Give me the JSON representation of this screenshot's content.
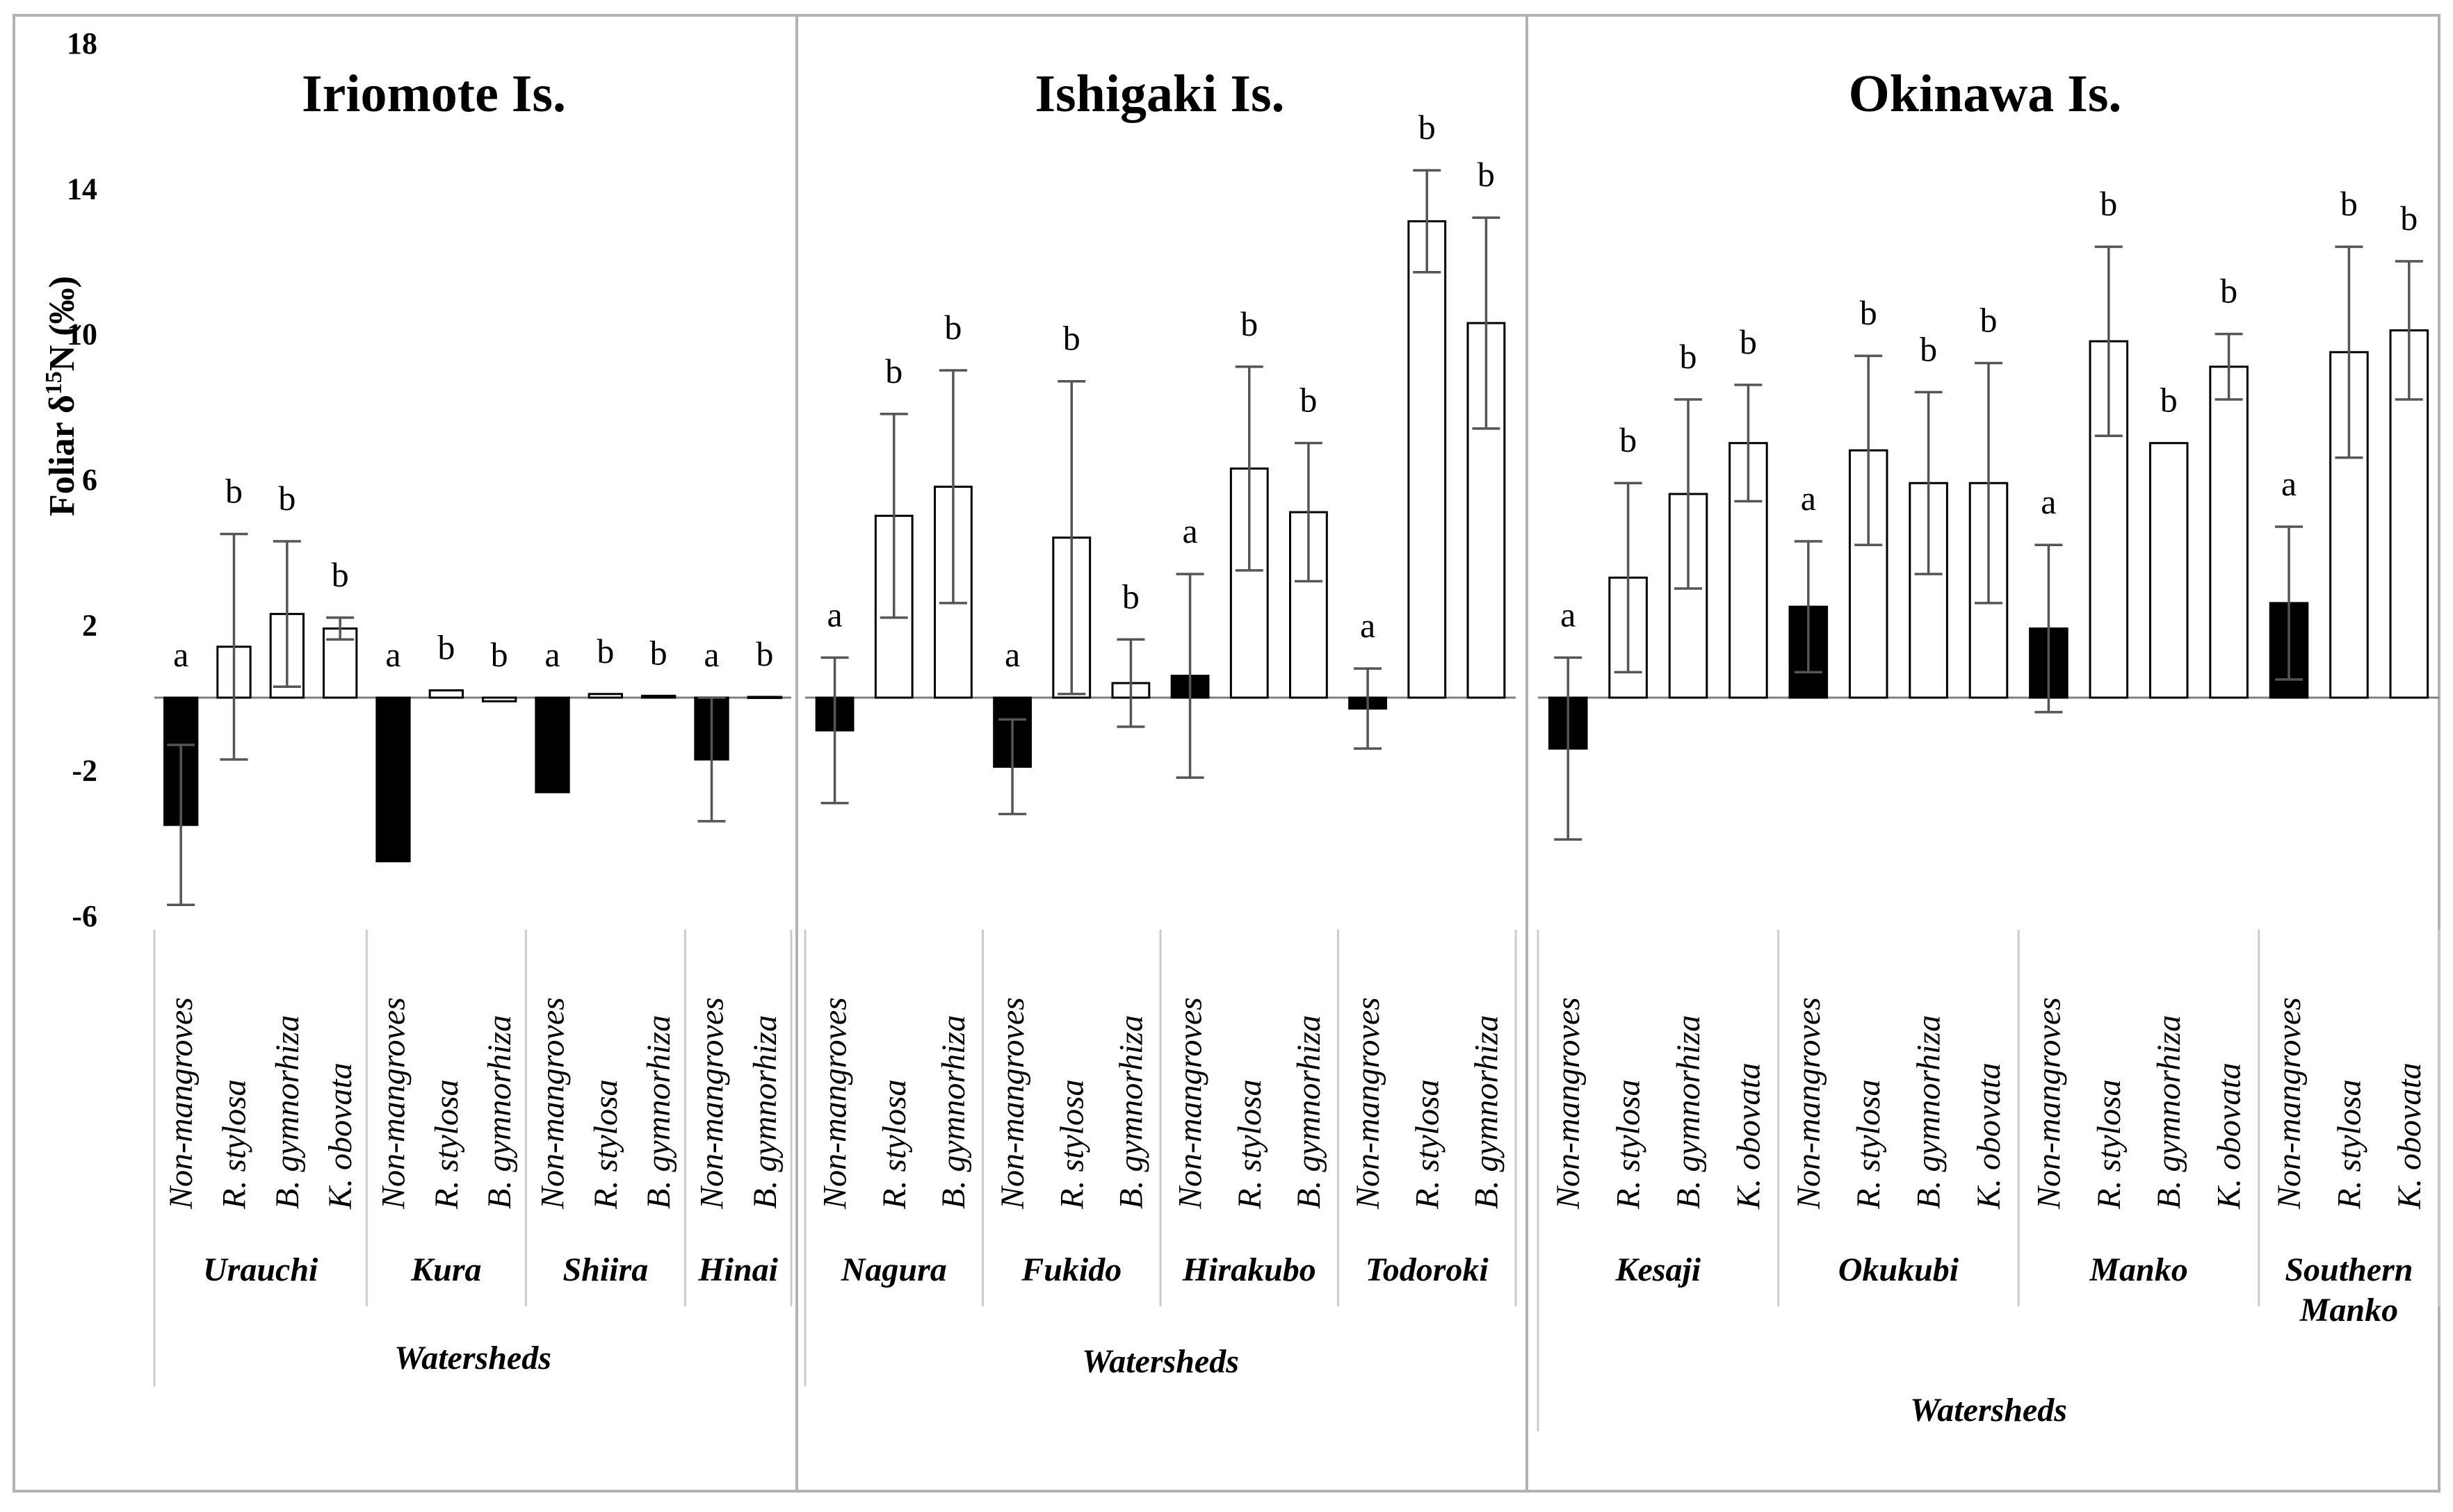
{
  "chart_data": {
    "type": "bar",
    "ylabel": "Foliar δ¹⁵N (‰)",
    "ylabel_parts": {
      "pre": "Foliar δ",
      "sup": "15",
      "post": "N (‰)"
    },
    "ylim": [
      -6,
      18
    ],
    "yticks": [
      -6,
      -2,
      2,
      6,
      10,
      14,
      18
    ],
    "colors": {
      "non_mangrove": "#000000",
      "mangrove": "#ffffff",
      "error": "#555555",
      "divider": "#cccccc",
      "frame": "#b3b3b3"
    },
    "panels": [
      {
        "title": "Iriomote Is.",
        "xlabel": "Watersheds",
        "watersheds": [
          {
            "name": "Urauchi",
            "bars": [
              {
                "species": "Non-mangroves",
                "value": -3.5,
                "err": 2.2,
                "letter": "a",
                "filled": true
              },
              {
                "species": "R. stylosa",
                "value": 1.4,
                "err": 3.1,
                "letter": "b",
                "filled": false
              },
              {
                "species": "B. gymnorhiza",
                "value": 2.3,
                "err": 2.0,
                "letter": "b",
                "filled": false
              },
              {
                "species": "K. obovata",
                "value": 1.9,
                "err": 0.3,
                "letter": "b",
                "filled": false
              }
            ]
          },
          {
            "name": "Kura",
            "bars": [
              {
                "species": "Non-mangroves",
                "value": -4.5,
                "err": 0,
                "letter": "a",
                "filled": true
              },
              {
                "species": "R. stylosa",
                "value": 0.2,
                "err": 0,
                "letter": "b",
                "filled": false
              },
              {
                "species": "B. gymnorhiza",
                "value": -0.1,
                "err": 0,
                "letter": "b",
                "filled": false
              }
            ]
          },
          {
            "name": "Shiira",
            "bars": [
              {
                "species": "Non-mangroves",
                "value": -2.6,
                "err": 0,
                "letter": "a",
                "filled": true
              },
              {
                "species": "R. stylosa",
                "value": 0.1,
                "err": 0,
                "letter": "b",
                "filled": false
              },
              {
                "species": "B. gymnorhiza",
                "value": 0.05,
                "err": 0,
                "letter": "b",
                "filled": false
              }
            ]
          },
          {
            "name": "Hinai",
            "bars": [
              {
                "species": "Non-mangroves",
                "value": -1.7,
                "err": 1.7,
                "letter": "a",
                "filled": true
              },
              {
                "species": "B. gymnorhiza",
                "value": 0.02,
                "err": 0,
                "letter": "b",
                "filled": false
              }
            ]
          }
        ]
      },
      {
        "title": "Ishigaki Is.",
        "xlabel": "Watersheds",
        "watersheds": [
          {
            "name": "Nagura",
            "bars": [
              {
                "species": "Non-mangroves",
                "value": -0.9,
                "err": 2.0,
                "letter": "a",
                "filled": true
              },
              {
                "species": "R. stylosa",
                "value": 5.0,
                "err": 2.8,
                "letter": "b",
                "filled": false
              },
              {
                "species": "B. gymnorhiza",
                "value": 5.8,
                "err": 3.2,
                "letter": "b",
                "filled": false
              }
            ]
          },
          {
            "name": "Fukido",
            "bars": [
              {
                "species": "Non-mangroves",
                "value": -1.9,
                "err": 1.3,
                "letter": "a",
                "filled": true
              },
              {
                "species": "R. stylosa",
                "value": 4.4,
                "err": 4.3,
                "letter": "b",
                "filled": false
              },
              {
                "species": "B. gymnorhiza",
                "value": 0.4,
                "err": 1.2,
                "letter": "b",
                "filled": false
              }
            ]
          },
          {
            "name": "Hirakubo",
            "bars": [
              {
                "species": "Non-mangroves",
                "value": 0.6,
                "err": 2.8,
                "letter": "a",
                "filled": true
              },
              {
                "species": "R. stylosa",
                "value": 6.3,
                "err": 2.8,
                "letter": "b",
                "filled": false
              },
              {
                "species": "B. gymnorhiza",
                "value": 5.1,
                "err": 1.9,
                "letter": "b",
                "filled": false
              }
            ]
          },
          {
            "name": "Todoroki",
            "bars": [
              {
                "species": "Non-mangroves",
                "value": -0.3,
                "err": 1.1,
                "letter": "a",
                "filled": true
              },
              {
                "species": "R. stylosa",
                "value": 13.1,
                "err": 1.4,
                "letter": "b",
                "filled": false
              },
              {
                "species": "B. gymnorhiza",
                "value": 10.3,
                "err": 2.9,
                "letter": "b",
                "filled": false
              }
            ]
          }
        ]
      },
      {
        "title": "Okinawa Is.",
        "xlabel": "Watersheds",
        "watersheds": [
          {
            "name": "Kesaji",
            "bars": [
              {
                "species": "Non-mangroves",
                "value": -1.4,
                "err": 2.5,
                "letter": "a",
                "filled": true
              },
              {
                "species": "R. stylosa",
                "value": 3.3,
                "err": 2.6,
                "letter": "b",
                "filled": false
              },
              {
                "species": "B. gymnorhiza",
                "value": 5.6,
                "err": 2.6,
                "letter": "b",
                "filled": false
              },
              {
                "species": "K. obovata",
                "value": 7.0,
                "err": 1.6,
                "letter": "b",
                "filled": false
              }
            ]
          },
          {
            "name": "Okukubi",
            "bars": [
              {
                "species": "Non-mangroves",
                "value": 2.5,
                "err": 1.8,
                "letter": "a",
                "filled": true
              },
              {
                "species": "R. stylosa",
                "value": 6.8,
                "err": 2.6,
                "letter": "b",
                "filled": false
              },
              {
                "species": "B. gymnorhiza",
                "value": 5.9,
                "err": 2.5,
                "letter": "b",
                "filled": false
              },
              {
                "species": "K. obovata",
                "value": 5.9,
                "err": 3.3,
                "letter": "b",
                "filled": false
              }
            ]
          },
          {
            "name": "Manko",
            "bars": [
              {
                "species": "Non-mangroves",
                "value": 1.9,
                "err": 2.3,
                "letter": "a",
                "filled": true
              },
              {
                "species": "R. stylosa",
                "value": 9.8,
                "err": 2.6,
                "letter": "b",
                "filled": false
              },
              {
                "species": "B. gymnorhiza",
                "value": 7.0,
                "err": 0,
                "letter": "b",
                "filled": false
              },
              {
                "species": "K. obovata",
                "value": 9.1,
                "err": 0.9,
                "letter": "b",
                "filled": false
              }
            ]
          },
          {
            "name": "Southern Manko",
            "name_lines": [
              "Southern",
              "Manko"
            ],
            "bars": [
              {
                "species": "Non-mangroves",
                "value": 2.6,
                "err": 2.1,
                "letter": "a",
                "filled": true
              },
              {
                "species": "R. stylosa",
                "value": 9.5,
                "err": 2.9,
                "letter": "b",
                "filled": false
              },
              {
                "species": "K. obovata",
                "value": 10.1,
                "err": 1.9,
                "letter": "b",
                "filled": false
              }
            ]
          }
        ]
      }
    ]
  }
}
